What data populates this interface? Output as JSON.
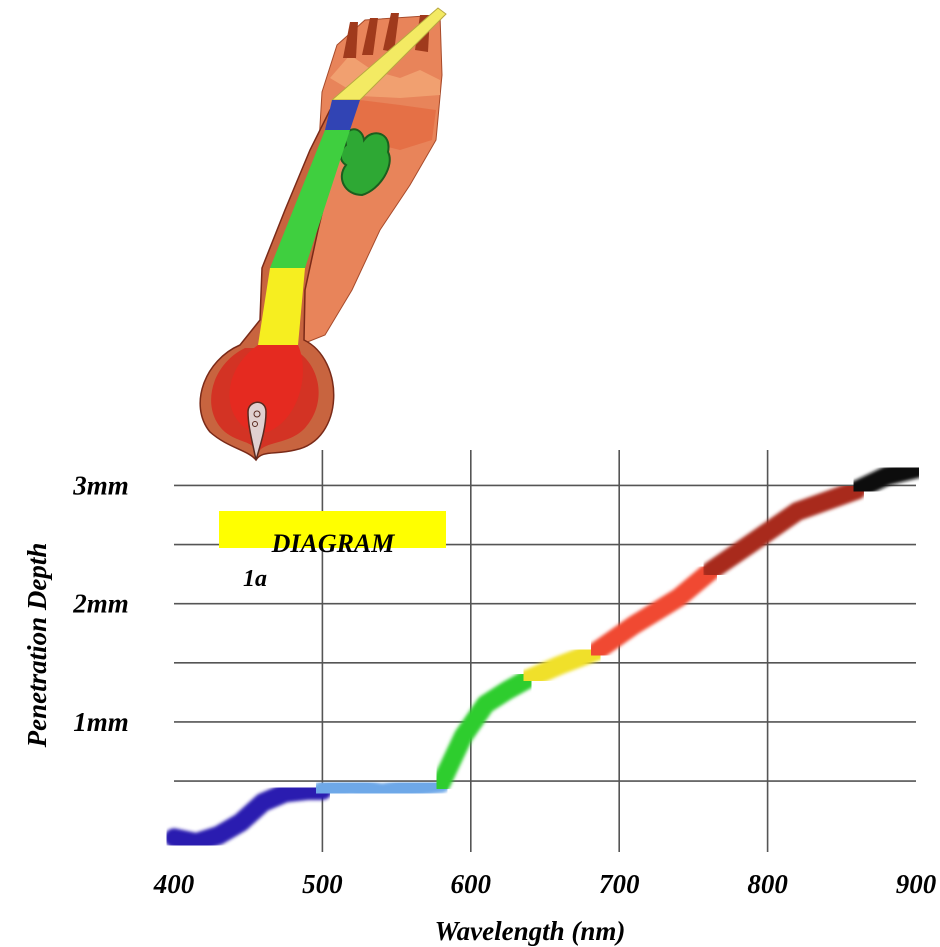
{
  "chart_data": {
    "type": "line",
    "title": "",
    "xlabel": "Wavelength (nm)",
    "ylabel": "Penetration Depth",
    "xlim": [
      400,
      900
    ],
    "ylim": [
      -0.1,
      3.3
    ],
    "grid": true,
    "x_ticks": [
      {
        "value": 400,
        "label": "400"
      },
      {
        "value": 500,
        "label": "500"
      },
      {
        "value": 600,
        "label": "600"
      },
      {
        "value": 700,
        "label": "700"
      },
      {
        "value": 800,
        "label": "800"
      },
      {
        "value": 900,
        "label": "900"
      }
    ],
    "y_ticks": [
      {
        "value": 1,
        "label": "1mm"
      },
      {
        "value": 2,
        "label": "2mm"
      },
      {
        "value": 3,
        "label": "3mm"
      }
    ],
    "y_gridlines": [
      0.5,
      1.0,
      1.5,
      2.0,
      2.5,
      3.0
    ],
    "series": [
      {
        "color": "#2a1fb0",
        "x": [
          400,
          415,
          430,
          445,
          460,
          475,
          490,
          500
        ],
        "y": [
          0.02,
          -0.02,
          0.04,
          0.15,
          0.32,
          0.4,
          0.42,
          0.42
        ]
      },
      {
        "color": "#6ea8e8",
        "x": [
          500,
          520,
          540,
          560,
          580
        ],
        "y": [
          0.42,
          0.46,
          0.4,
          0.45,
          0.48
        ]
      },
      {
        "color": "#2fcd2f",
        "x": [
          580,
          595,
          610,
          625,
          638
        ],
        "y": [
          0.48,
          0.88,
          1.15,
          1.27,
          1.36
        ]
      },
      {
        "color": "#f0e02a",
        "x": [
          638,
          660,
          685
        ],
        "y": [
          1.36,
          1.48,
          1.6
        ]
      },
      {
        "color": "#f04a30",
        "x": [
          685,
          710,
          740,
          762
        ],
        "y": [
          1.6,
          1.82,
          2.05,
          2.28
        ]
      },
      {
        "color": "#a82a1e",
        "x": [
          762,
          790,
          820,
          860
        ],
        "y": [
          2.28,
          2.52,
          2.78,
          2.96
        ]
      },
      {
        "color": "#111111",
        "x": [
          860,
          880,
          900
        ],
        "y": [
          2.96,
          3.08,
          3.14
        ]
      }
    ],
    "annotation": {
      "text": "DIAGRAM",
      "subtext": "1a",
      "highlight": "#ffff00"
    }
  }
}
